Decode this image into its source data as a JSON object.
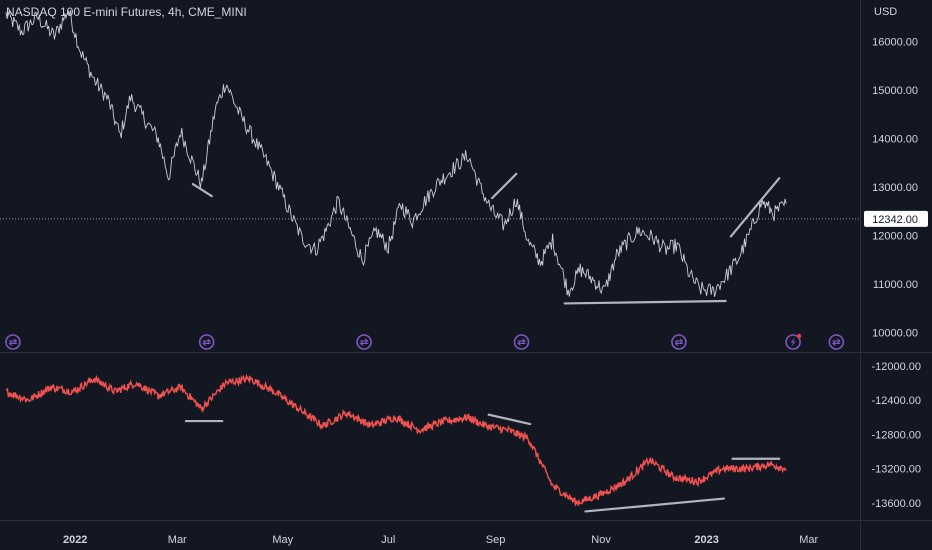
{
  "header": {
    "title": "NASDAQ 100 E-mini Futures, 4h, CME_MINI",
    "currency": "USD"
  },
  "colors": {
    "background": "#131722",
    "price_line": "#c9ccd4",
    "indicator_line": "#f2524f",
    "trend_line": "#b2b5be",
    "axis_text": "#d1d4dc",
    "event_icon": "#7e57c2"
  },
  "price_tag": "12342.00",
  "chart_data": [
    {
      "type": "line",
      "title": "NASDAQ 100 E-mini Futures, 4h, CME_MINI",
      "ylabel": "USD",
      "ylim": [
        9600,
        16850
      ],
      "yticks": [
        "16000.00",
        "15000.00",
        "14000.00",
        "13000.00",
        "12000.00",
        "11000.00",
        "10000.00"
      ],
      "current_value": 12342,
      "x": [
        "2021-11-22",
        "2021-12-01",
        "2021-12-10",
        "2021-12-20",
        "2021-12-28",
        "2022-01-04",
        "2022-01-12",
        "2022-01-20",
        "2022-01-27",
        "2022-02-02",
        "2022-02-10",
        "2022-02-18",
        "2022-02-24",
        "2022-03-03",
        "2022-03-10",
        "2022-03-15",
        "2022-03-23",
        "2022-03-29",
        "2022-04-06",
        "2022-04-14",
        "2022-04-22",
        "2022-04-28",
        "2022-05-06",
        "2022-05-12",
        "2022-05-20",
        "2022-05-26",
        "2022-06-02",
        "2022-06-09",
        "2022-06-16",
        "2022-06-24",
        "2022-07-01",
        "2022-07-08",
        "2022-07-15",
        "2022-07-22",
        "2022-07-29",
        "2022-08-05",
        "2022-08-16",
        "2022-08-23",
        "2022-08-30",
        "2022-09-06",
        "2022-09-13",
        "2022-09-20",
        "2022-09-27",
        "2022-10-04",
        "2022-10-13",
        "2022-10-20",
        "2022-10-27",
        "2022-11-03",
        "2022-11-10",
        "2022-11-17",
        "2022-11-23",
        "2022-12-01",
        "2022-12-08",
        "2022-12-15",
        "2022-12-22",
        "2022-12-28",
        "2023-01-05",
        "2023-01-12",
        "2023-01-19",
        "2023-01-26",
        "2023-02-02",
        "2023-02-09",
        "2023-02-16"
      ],
      "y": [
        16550,
        16200,
        16500,
        16100,
        16650,
        15800,
        15200,
        14800,
        14050,
        14850,
        14400,
        14000,
        13200,
        14150,
        13500,
        13050,
        14600,
        15150,
        14500,
        14000,
        13500,
        13050,
        12400,
        11950,
        11700,
        12100,
        12700,
        12100,
        11500,
        12100,
        11750,
        12650,
        12300,
        12700,
        13050,
        13300,
        13650,
        13000,
        12500,
        12200,
        12750,
        11850,
        11450,
        11900,
        10850,
        11300,
        11100,
        10850,
        11600,
        11900,
        12100,
        11950,
        11700,
        11800,
        11200,
        10900,
        10850,
        11150,
        11500,
        12050,
        12700,
        12450,
        12650
      ],
      "annotations": [
        {
          "type": "trendline",
          "from": [
            "2022-03-10",
            13060
          ],
          "to": [
            "2022-03-21",
            12810
          ]
        },
        {
          "type": "trendline",
          "from": [
            "2022-08-30",
            12770
          ],
          "to": [
            "2022-09-13",
            13270
          ]
        },
        {
          "type": "trendline",
          "from": [
            "2022-10-11",
            10600
          ],
          "to": [
            "2023-01-12",
            10650
          ]
        },
        {
          "type": "trendline",
          "from": [
            "2023-01-15",
            11980
          ],
          "to": [
            "2023-02-12",
            13180
          ]
        }
      ]
    },
    {
      "type": "line",
      "ylim": [
        -13800,
        -11850
      ],
      "yticks": [
        "-12000.00",
        "-12400.00",
        "-12800.00",
        "-13200.00",
        "-13600.00"
      ],
      "x": [
        "2021-11-22",
        "2021-12-05",
        "2021-12-18",
        "2021-12-31",
        "2022-01-12",
        "2022-01-24",
        "2022-02-05",
        "2022-02-18",
        "2022-03-03",
        "2022-03-15",
        "2022-03-29",
        "2022-04-12",
        "2022-04-26",
        "2022-05-10",
        "2022-05-24",
        "2022-06-07",
        "2022-06-21",
        "2022-07-05",
        "2022-07-19",
        "2022-08-02",
        "2022-08-16",
        "2022-08-26",
        "2022-09-08",
        "2022-09-20",
        "2022-10-04",
        "2022-10-18",
        "2022-11-01",
        "2022-11-15",
        "2022-11-29",
        "2022-12-13",
        "2022-12-27",
        "2023-01-10",
        "2023-01-24",
        "2023-02-07",
        "2023-02-16"
      ],
      "y": [
        -12300,
        -12400,
        -12250,
        -12300,
        -12150,
        -12300,
        -12200,
        -12350,
        -12250,
        -12500,
        -12200,
        -12150,
        -12300,
        -12500,
        -12700,
        -12550,
        -12700,
        -12600,
        -12750,
        -12650,
        -12600,
        -12700,
        -12750,
        -12850,
        -13400,
        -13600,
        -13500,
        -13350,
        -13100,
        -13300,
        -13350,
        -13200,
        -13200,
        -13150,
        -13200
      ],
      "annotations": [
        {
          "type": "trendline",
          "from": [
            "2022-03-06",
            -12645
          ],
          "to": [
            "2022-03-27",
            -12645
          ]
        },
        {
          "type": "trendline",
          "from": [
            "2022-08-28",
            -12570
          ],
          "to": [
            "2022-09-21",
            -12680
          ]
        },
        {
          "type": "trendline",
          "from": [
            "2022-10-23",
            -13700
          ],
          "to": [
            "2023-01-11",
            -13550
          ]
        },
        {
          "type": "trendline",
          "from": [
            "2023-01-16",
            -13085
          ],
          "to": [
            "2023-02-12",
            -13085
          ]
        }
      ]
    }
  ],
  "time_axis": {
    "labels": [
      {
        "text": "2022",
        "date": "2022-01-01"
      },
      {
        "text": "Mar",
        "date": "2022-03-01"
      },
      {
        "text": "May",
        "date": "2022-05-01"
      },
      {
        "text": "Jul",
        "date": "2022-07-01"
      },
      {
        "text": "Sep",
        "date": "2022-09-01"
      },
      {
        "text": "Nov",
        "date": "2022-11-01"
      },
      {
        "text": "2023",
        "date": "2023-01-01"
      },
      {
        "text": "Mar",
        "date": "2023-03-01"
      }
    ]
  },
  "event_icons": [
    {
      "name": "dividend-event-icon",
      "date": "2021-11-26"
    },
    {
      "name": "dividend-event-icon",
      "date": "2022-03-18"
    },
    {
      "name": "dividend-event-icon",
      "date": "2022-06-17"
    },
    {
      "name": "dividend-event-icon",
      "date": "2022-09-16"
    },
    {
      "name": "dividend-event-icon",
      "date": "2022-12-16"
    },
    {
      "name": "lightning-event-icon",
      "date": "2023-02-20"
    },
    {
      "name": "dividend-event-icon",
      "date": "2023-03-17"
    }
  ]
}
